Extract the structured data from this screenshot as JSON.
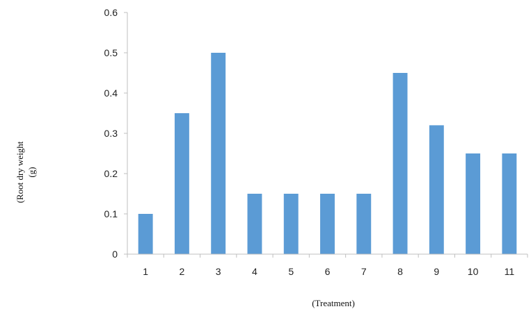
{
  "chart_data": {
    "type": "bar",
    "categories": [
      "1",
      "2",
      "3",
      "4",
      "5",
      "6",
      "7",
      "8",
      "9",
      "10",
      "11"
    ],
    "values": [
      0.1,
      0.35,
      0.5,
      0.15,
      0.15,
      0.15,
      0.15,
      0.45,
      0.32,
      0.25,
      0.25
    ],
    "ylim": [
      0,
      0.6
    ],
    "yticks": [
      "0",
      "0.1",
      "0.2",
      "0.3",
      "0.4",
      "0.5",
      "0.6"
    ],
    "ylabel_line1": "(Root dry weight",
    "ylabel_line2": "(g)",
    "xlabel": "(Treatment)",
    "grid": false,
    "legend": "none",
    "bar_color": "#5b9bd5",
    "axis_color": "#bfbfbf"
  }
}
